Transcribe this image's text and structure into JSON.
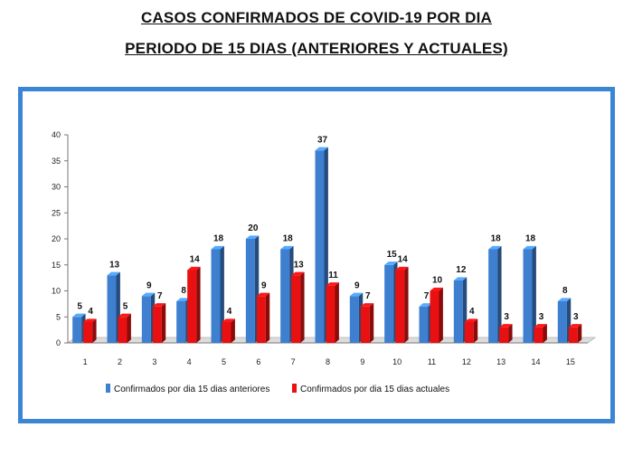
{
  "page": {
    "title_line1": "CASOS CONFIRMADOS DE COVID-19 POR DIA",
    "title_line2": "PERIODO DE 15 DIAS (ANTERIORES Y ACTUALES)"
  },
  "chart_data": {
    "type": "bar",
    "title": "CASOS CONFIRMADOS DE COVID-19 POR DIA",
    "subtitle": "PERIODO DE 15 DIAS (ANTERIORES Y ACTUALES)",
    "categories": [
      "1",
      "2",
      "3",
      "4",
      "5",
      "6",
      "7",
      "8",
      "9",
      "10",
      "11",
      "12",
      "13",
      "14",
      "15"
    ],
    "series": [
      {
        "name": "Confirmados por dia 15 dias anteriores",
        "color": "#3e7fd0",
        "values": [
          5,
          13,
          9,
          8,
          18,
          20,
          18,
          37,
          9,
          15,
          7,
          12,
          18,
          18,
          8
        ]
      },
      {
        "name": "Confirmados por dia 15 dias actuales",
        "color": "#e81010",
        "values": [
          4,
          5,
          7,
          14,
          4,
          9,
          13,
          11,
          7,
          14,
          10,
          4,
          3,
          3,
          3
        ]
      }
    ],
    "ylim": [
      0,
      40
    ],
    "yticks": [
      0,
      5,
      10,
      15,
      20,
      25,
      30,
      35,
      40
    ],
    "grid": false,
    "legend": "bottom",
    "data_labels": true
  }
}
